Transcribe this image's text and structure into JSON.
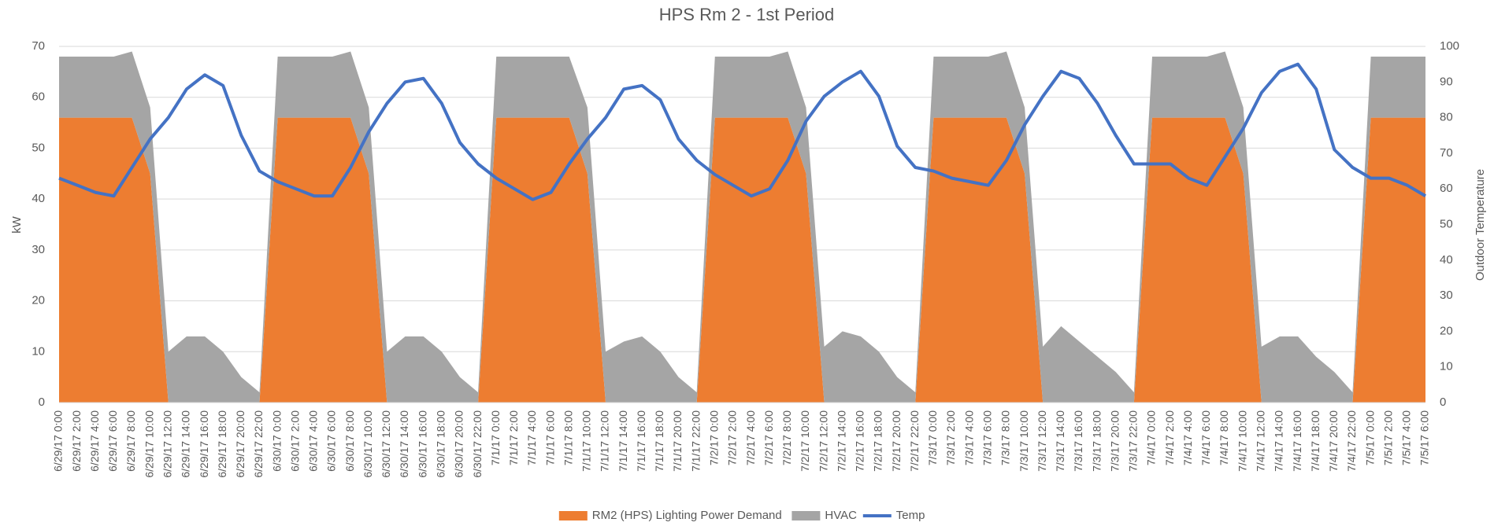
{
  "chart_data": {
    "type": "area",
    "title": "HPS Rm 2 - 1st Period",
    "y_label": "kW",
    "y2_label": "Outdoor Temperature",
    "categories": [
      "6/29/17 0:00",
      "6/29/17 2:00",
      "6/29/17 4:00",
      "6/29/17 6:00",
      "6/29/17 8:00",
      "6/29/17 10:00",
      "6/29/17 12:00",
      "6/29/17 14:00",
      "6/29/17 16:00",
      "6/29/17 18:00",
      "6/29/17 20:00",
      "6/29/17 22:00",
      "6/30/17 0:00",
      "6/30/17 2:00",
      "6/30/17 4:00",
      "6/30/17 6:00",
      "6/30/17 8:00",
      "6/30/17 10:00",
      "6/30/17 12:00",
      "6/30/17 14:00",
      "6/30/17 16:00",
      "6/30/17 18:00",
      "6/30/17 20:00",
      "6/30/17 22:00",
      "7/1/17 0:00",
      "7/1/17 2:00",
      "7/1/17 4:00",
      "7/1/17 6:00",
      "7/1/17 8:00",
      "7/1/17 10:00",
      "7/1/17 12:00",
      "7/1/17 14:00",
      "7/1/17 16:00",
      "7/1/17 18:00",
      "7/1/17 20:00",
      "7/1/17 22:00",
      "7/2/17 0:00",
      "7/2/17 2:00",
      "7/2/17 4:00",
      "7/2/17 6:00",
      "7/2/17 8:00",
      "7/2/17 10:00",
      "7/2/17 12:00",
      "7/2/17 14:00",
      "7/2/17 16:00",
      "7/2/17 18:00",
      "7/2/17 20:00",
      "7/2/17 22:00",
      "7/3/17 0:00",
      "7/3/17 2:00",
      "7/3/17 4:00",
      "7/3/17 6:00",
      "7/3/17 8:00",
      "7/3/17 10:00",
      "7/3/17 12:00",
      "7/3/17 14:00",
      "7/3/17 16:00",
      "7/3/17 18:00",
      "7/3/17 20:00",
      "7/3/17 22:00",
      "7/4/17 0:00",
      "7/4/17 2:00",
      "7/4/17 4:00",
      "7/4/17 6:00",
      "7/4/17 8:00",
      "7/4/17 10:00",
      "7/4/17 12:00",
      "7/4/17 14:00",
      "7/4/17 16:00",
      "7/4/17 18:00",
      "7/4/17 20:00",
      "7/4/17 22:00",
      "7/5/17 0:00",
      "7/5/17 2:00",
      "7/5/17 4:00",
      "7/5/17 6:00"
    ],
    "series": [
      {
        "name": "RM2 (HPS) Lighting Power Demand",
        "type": "area",
        "color": "#ed7d31",
        "values": [
          56,
          56,
          56,
          56,
          56,
          45,
          0,
          0,
          0,
          0,
          0,
          0,
          56,
          56,
          56,
          56,
          56,
          45,
          0,
          0,
          0,
          0,
          0,
          0,
          56,
          56,
          56,
          56,
          56,
          45,
          0,
          0,
          0,
          0,
          0,
          0,
          56,
          56,
          56,
          56,
          56,
          45,
          0,
          0,
          0,
          0,
          0,
          0,
          56,
          56,
          56,
          56,
          56,
          45,
          0,
          0,
          0,
          0,
          0,
          0,
          56,
          56,
          56,
          56,
          56,
          45,
          0,
          0,
          0,
          0,
          0,
          0,
          56,
          56,
          56,
          56
        ]
      },
      {
        "name": "HVAC",
        "type": "area",
        "color": "#a5a5a5",
        "values": [
          12,
          12,
          12,
          12,
          13,
          13,
          10,
          13,
          13,
          10,
          5,
          2,
          12,
          12,
          12,
          12,
          13,
          13,
          10,
          13,
          13,
          10,
          5,
          2,
          12,
          12,
          12,
          12,
          12,
          13,
          10,
          12,
          13,
          10,
          5,
          2,
          12,
          12,
          12,
          12,
          13,
          13,
          11,
          14,
          13,
          10,
          5,
          2,
          12,
          12,
          12,
          12,
          13,
          13,
          11,
          15,
          12,
          9,
          6,
          2,
          12,
          12,
          12,
          12,
          13,
          13,
          11,
          13,
          13,
          9,
          6,
          2,
          12,
          12,
          12,
          12
        ]
      },
      {
        "name": "Temp",
        "type": "line",
        "axis": "y2",
        "color": "#4472c4",
        "values": [
          63,
          61,
          59,
          58,
          66,
          74,
          80,
          88,
          92,
          89,
          75,
          65,
          62,
          60,
          58,
          58,
          66,
          76,
          84,
          90,
          91,
          84,
          73,
          67,
          63,
          60,
          57,
          59,
          67,
          74,
          80,
          88,
          89,
          85,
          74,
          68,
          64,
          61,
          58,
          60,
          68,
          79,
          86,
          90,
          93,
          86,
          72,
          66,
          65,
          63,
          62,
          61,
          68,
          78,
          86,
          93,
          91,
          84,
          75,
          67,
          67,
          67,
          63,
          61,
          69,
          77,
          87,
          93,
          95,
          88,
          71,
          66,
          63,
          63,
          61,
          58
        ]
      }
    ],
    "ylim": [
      0,
      70
    ],
    "yticks": [
      0,
      10,
      20,
      30,
      40,
      50,
      60,
      70
    ],
    "y2lim": [
      0,
      100
    ],
    "y2ticks": [
      0,
      10,
      20,
      30,
      40,
      50,
      60,
      70,
      80,
      90,
      100
    ],
    "grid": true,
    "legend": "bottom"
  }
}
